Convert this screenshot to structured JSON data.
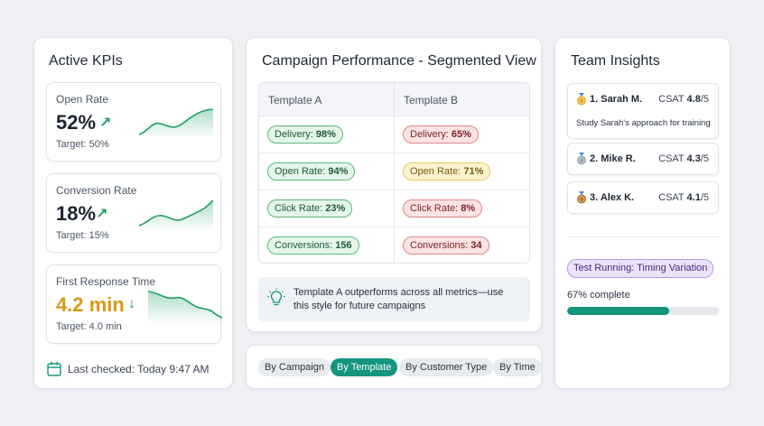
{
  "kpis": {
    "title": "Active KPIs",
    "items": [
      {
        "label": "Open Rate",
        "value": "52%",
        "arrow": "↗",
        "target": "Target: 50%",
        "trend": "up"
      },
      {
        "label": "Conversion Rate",
        "value": "18%",
        "arrow": "↗",
        "target": "Target: 15%",
        "trend": "up"
      },
      {
        "label": "First Response Time",
        "value": "4.2 min",
        "arrow": "↓",
        "target": "Target: 4.0 min",
        "trend": "down"
      }
    ],
    "last_checked": "Last checked: Today 9:47 AM"
  },
  "campaign": {
    "title": "Campaign Performance - Segmented View",
    "columns": [
      "Template A",
      "Template B"
    ],
    "rows": [
      {
        "a_label": "Delivery:",
        "a_value": "98%",
        "b_label": "Delivery:",
        "b_value": "65%"
      },
      {
        "a_label": "Open Rate:",
        "a_value": "94%",
        "b_label": "Open Rate:",
        "b_value": "71%"
      },
      {
        "a_label": "Click Rate:",
        "a_value": "23%",
        "b_label": "Click Rate:",
        "b_value": "8%"
      },
      {
        "a_label": "Conversions:",
        "a_value": "156",
        "b_label": "Conversions:",
        "b_value": "34"
      }
    ],
    "insight": "Template A outperforms across all metrics—use this style for future campaigns"
  },
  "filters": {
    "by_campaign": "By Campaign",
    "by_template": "By Template",
    "by_customer_type": "By Customer Type",
    "by_time": "By Time",
    "active": "By Template"
  },
  "team": {
    "title": "Team Insights",
    "members": [
      {
        "rank_name": "1. Sarah M.",
        "csat_label": "CSAT",
        "score": "4.8",
        "scale": "/5",
        "note": "Study Sarah's approach for training"
      },
      {
        "rank_name": "2. Mike R.",
        "csat_label": "CSAT",
        "score": "4.3",
        "scale": "/5"
      },
      {
        "rank_name": "3. Alex K.",
        "csat_label": "CSAT",
        "score": "4.1",
        "scale": "/5"
      }
    ],
    "test_badge": "Test Running: Timing Variation",
    "progress_label": "67% complete",
    "progress_value": 0.67
  },
  "colors": {
    "accent": "#14957d",
    "up": "#1e9e63",
    "down_value": "#d89a13",
    "gold": "#e0a92a",
    "silver": "#9aa3ad",
    "bronze": "#b87333"
  }
}
